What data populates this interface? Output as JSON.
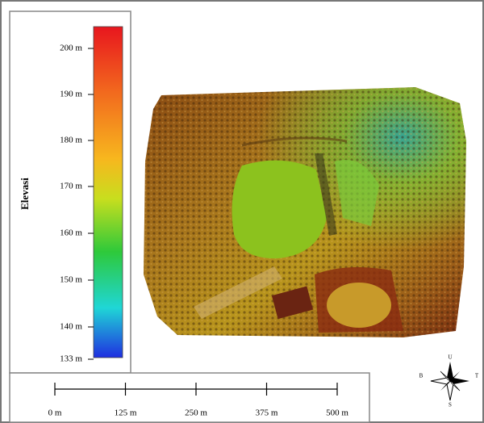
{
  "legend": {
    "title": "Elevasi",
    "ticks": [
      "200 m",
      "190 m",
      "180 m",
      "170 m",
      "160 m",
      "150 m",
      "140 m",
      "133 m"
    ]
  },
  "scale_bar": {
    "labels": [
      "0 m",
      "125 m",
      "250 m",
      "375 m",
      "500 m"
    ]
  },
  "compass": {
    "north": "U",
    "east": "T",
    "south": "S",
    "west": "B"
  }
}
